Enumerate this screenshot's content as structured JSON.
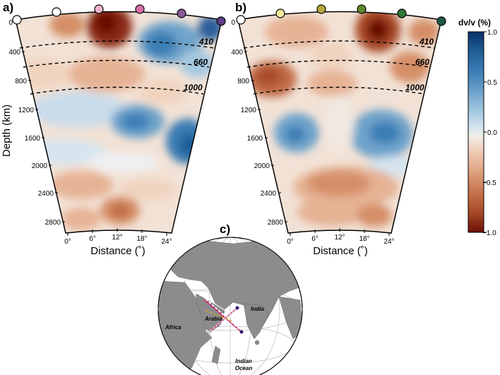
{
  "panels": {
    "a": {
      "label": "a)"
    },
    "b": {
      "label": "b)"
    },
    "c": {
      "label": "c)"
    }
  },
  "depth_axis": {
    "title": "Depth (km)",
    "ticks": [
      "0",
      "400",
      "800",
      "1200",
      "1600",
      "2000",
      "2400",
      "2800"
    ]
  },
  "distance_axis": {
    "title": "Distance (˚)",
    "ticks": [
      "0°",
      "6°",
      "12°",
      "18°",
      "24°"
    ]
  },
  "discontinuities": [
    "410",
    "660",
    "1000"
  ],
  "colorbar": {
    "title": "dv/v (%)",
    "ticks": [
      "1.0",
      "0.5",
      "0.0",
      "−0.5",
      "−1.0"
    ],
    "colors": [
      "#08306b",
      "#1f5f96",
      "#3a7db4",
      "#6ea3cb",
      "#a6c8e0",
      "#d6e5ef",
      "#f1ede9",
      "#f1d4c0",
      "#e6b294",
      "#d58f68",
      "#c06b45",
      "#a84a28",
      "#8a2b12",
      "#6b0f05"
    ]
  },
  "station_markers": {
    "a": [
      "#ffffff",
      "#ffffff",
      "#f0b6cf",
      "#d870a8",
      "#8a5b9b",
      "#5e3f8a"
    ],
    "b": [
      "#ffffff",
      "#f5e99a",
      "#b8a83a",
      "#5e8a2e",
      "#2f7a3a",
      "#1d5a46"
    ]
  },
  "map": {
    "labels": [
      "Arabia",
      "India",
      "Africa",
      "Indian",
      "Ocean"
    ]
  }
}
